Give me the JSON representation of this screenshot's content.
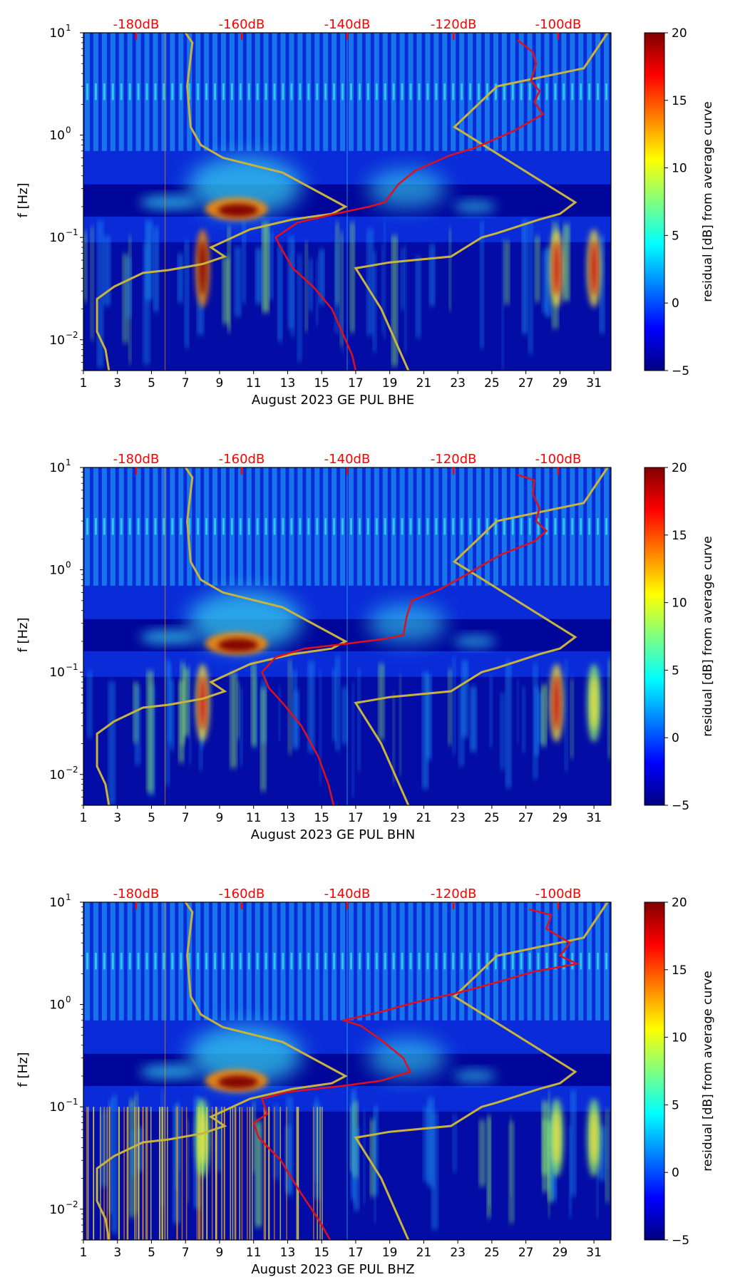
{
  "colorbar_ticks": [
    "20",
    "15",
    "10",
    "5",
    "0",
    "−5"
  ],
  "y_tick_labels": [
    {
      "base": "10",
      "exp": "1"
    },
    {
      "base": "10",
      "exp": "0"
    },
    {
      "base": "10",
      "exp": "−1"
    },
    {
      "base": "10",
      "exp": "−2"
    }
  ],
  "palette": {
    "cb_stops": [
      "#800000",
      "#ff0000",
      "#ff8000",
      "#ffff00",
      "#80ff80",
      "#00ffff",
      "#0080ff",
      "#0000ff",
      "#000080"
    ],
    "bg_deep": "#000090",
    "bg_mid": "#0a2cd8",
    "stripe": "#1c8cf0",
    "cyan": "#38d8f0",
    "green": "#8cf070",
    "yellow": "#f0e040",
    "orange": "#ff8c00",
    "red": "#d01010",
    "darkred": "#800000",
    "curve_red": "#e0101a",
    "curve_yellow": "#c8b43c",
    "db_label": "#ff0000"
  },
  "chart_data": [
    {
      "type": "heatmap",
      "xlabel": "August 2023 GE PUL  BHE",
      "ylabel": "f [Hz]",
      "colorbar_label": "residual [dB] from average curve",
      "colorbar_range": [
        -5,
        20
      ],
      "x_ticks": [
        "1",
        "3",
        "5",
        "7",
        "9",
        "11",
        "13",
        "15",
        "17",
        "19",
        "21",
        "23",
        "25",
        "27",
        "29",
        "31"
      ],
      "xlim": [
        1,
        32
      ],
      "ylim": [
        0.005,
        10
      ],
      "db_scale": [
        "-180dB",
        "-160dB",
        "-140dB",
        "-120dB",
        "-100dB"
      ],
      "db_scale_positions": [
        4.1,
        10.3,
        16.5,
        22.75,
        28.9
      ],
      "curve_yellow": [
        [
          7.0,
          10
        ],
        [
          7.4,
          8
        ],
        [
          7.1,
          3
        ],
        [
          7.3,
          1.2
        ],
        [
          7.9,
          0.8
        ],
        [
          9.2,
          0.6
        ],
        [
          12.7,
          0.43
        ],
        [
          16.4,
          0.2
        ],
        [
          15.6,
          0.17
        ],
        [
          13.3,
          0.15
        ],
        [
          10.8,
          0.12
        ],
        [
          8.5,
          0.08
        ],
        [
          9.3,
          0.065
        ],
        [
          8.0,
          0.055
        ],
        [
          6.0,
          0.048
        ],
        [
          4.5,
          0.045
        ],
        [
          2.8,
          0.033
        ],
        [
          1.8,
          0.025
        ],
        [
          1.8,
          0.012
        ],
        [
          2.3,
          0.008
        ],
        [
          2.5,
          0.005
        ]
      ],
      "curve_yellow_right": [
        [
          31.8,
          10
        ],
        [
          30.4,
          4.5
        ],
        [
          25.3,
          3.0
        ],
        [
          22.8,
          1.2
        ],
        [
          29.9,
          0.22
        ],
        [
          29.0,
          0.17
        ],
        [
          27.8,
          0.15
        ],
        [
          25.3,
          0.11
        ],
        [
          24.4,
          0.1
        ],
        [
          22.6,
          0.065
        ],
        [
          19.0,
          0.057
        ],
        [
          17.0,
          0.05
        ],
        [
          18.5,
          0.02
        ],
        [
          20.1,
          0.005
        ]
      ],
      "curve_red": [
        [
          26.5,
          8.5
        ],
        [
          27.4,
          6.5
        ],
        [
          27.6,
          5.0
        ],
        [
          27.3,
          3.4
        ],
        [
          27.8,
          2.7
        ],
        [
          27.5,
          2.1
        ],
        [
          28.0,
          1.6
        ],
        [
          27.4,
          1.4
        ],
        [
          26.3,
          1.1
        ],
        [
          24.0,
          0.75
        ],
        [
          22.5,
          0.63
        ],
        [
          20.5,
          0.45
        ],
        [
          19.5,
          0.33
        ],
        [
          18.7,
          0.22
        ],
        [
          17.8,
          0.2
        ],
        [
          15.8,
          0.17
        ],
        [
          13.6,
          0.14
        ],
        [
          12.3,
          0.1
        ],
        [
          12.5,
          0.085
        ],
        [
          13.3,
          0.05
        ],
        [
          14.5,
          0.033
        ],
        [
          15.6,
          0.02
        ],
        [
          16.4,
          0.01
        ],
        [
          16.8,
          0.007
        ],
        [
          17.0,
          0.005
        ]
      ],
      "hotspots": [
        {
          "x": 10.0,
          "f": 0.19,
          "level": "high"
        },
        {
          "x": 8.0,
          "f": 0.05,
          "level": "high"
        },
        {
          "x": 28.8,
          "f": 0.05,
          "level": "mid"
        },
        {
          "x": 31.0,
          "f": 0.05,
          "level": "mid"
        }
      ]
    },
    {
      "type": "heatmap",
      "xlabel": "August 2023 GE PUL  BHN",
      "ylabel": "f [Hz]",
      "colorbar_label": "residual [dB] from average curve",
      "colorbar_range": [
        -5,
        20
      ],
      "x_ticks": [
        "1",
        "3",
        "5",
        "7",
        "9",
        "11",
        "13",
        "15",
        "17",
        "19",
        "21",
        "23",
        "25",
        "27",
        "29",
        "31"
      ],
      "xlim": [
        1,
        32
      ],
      "ylim": [
        0.005,
        10
      ],
      "db_scale": [
        "-180dB",
        "-160dB",
        "-140dB",
        "-120dB",
        "-100dB"
      ],
      "db_scale_positions": [
        4.1,
        10.3,
        16.5,
        22.75,
        28.9
      ],
      "curve_yellow": [
        [
          7.0,
          10
        ],
        [
          7.4,
          8
        ],
        [
          7.1,
          3
        ],
        [
          7.3,
          1.2
        ],
        [
          7.9,
          0.8
        ],
        [
          9.2,
          0.6
        ],
        [
          12.7,
          0.43
        ],
        [
          16.4,
          0.2
        ],
        [
          15.6,
          0.17
        ],
        [
          13.3,
          0.15
        ],
        [
          10.8,
          0.12
        ],
        [
          8.5,
          0.08
        ],
        [
          9.3,
          0.065
        ],
        [
          8.0,
          0.055
        ],
        [
          6.0,
          0.048
        ],
        [
          4.5,
          0.045
        ],
        [
          2.8,
          0.033
        ],
        [
          1.8,
          0.025
        ],
        [
          1.8,
          0.012
        ],
        [
          2.3,
          0.008
        ],
        [
          2.5,
          0.005
        ]
      ],
      "curve_yellow_right": [
        [
          31.8,
          10
        ],
        [
          30.4,
          4.5
        ],
        [
          25.3,
          3.0
        ],
        [
          22.8,
          1.2
        ],
        [
          29.9,
          0.22
        ],
        [
          29.0,
          0.17
        ],
        [
          27.8,
          0.15
        ],
        [
          25.3,
          0.11
        ],
        [
          24.4,
          0.1
        ],
        [
          22.6,
          0.065
        ],
        [
          19.0,
          0.057
        ],
        [
          17.0,
          0.05
        ],
        [
          18.5,
          0.02
        ],
        [
          20.1,
          0.005
        ]
      ],
      "curve_red": [
        [
          26.5,
          8.5
        ],
        [
          27.5,
          7.5
        ],
        [
          27.4,
          5.5
        ],
        [
          27.8,
          4.0
        ],
        [
          27.6,
          3.0
        ],
        [
          28.2,
          2.4
        ],
        [
          27.5,
          1.9
        ],
        [
          25.5,
          1.4
        ],
        [
          23.5,
          0.9
        ],
        [
          22.0,
          0.65
        ],
        [
          20.3,
          0.5
        ],
        [
          20.0,
          0.35
        ],
        [
          19.8,
          0.23
        ],
        [
          18.6,
          0.21
        ],
        [
          16.5,
          0.19
        ],
        [
          14.0,
          0.17
        ],
        [
          12.3,
          0.14
        ],
        [
          11.5,
          0.1
        ],
        [
          11.9,
          0.07
        ],
        [
          12.7,
          0.05
        ],
        [
          13.8,
          0.03
        ],
        [
          14.8,
          0.015
        ],
        [
          15.4,
          0.008
        ],
        [
          15.7,
          0.005
        ]
      ],
      "hotspots": [
        {
          "x": 10.0,
          "f": 0.19,
          "level": "high"
        },
        {
          "x": 8.0,
          "f": 0.05,
          "level": "mid"
        },
        {
          "x": 28.8,
          "f": 0.05,
          "level": "mid"
        },
        {
          "x": 31.0,
          "f": 0.05,
          "level": "low"
        }
      ]
    },
    {
      "type": "heatmap",
      "xlabel": "August 2023 GE PUL  BHZ",
      "ylabel": "f [Hz]",
      "colorbar_label": "residual [dB] from average curve",
      "colorbar_range": [
        -5,
        20
      ],
      "x_ticks": [
        "1",
        "3",
        "5",
        "7",
        "9",
        "11",
        "13",
        "15",
        "17",
        "19",
        "21",
        "23",
        "25",
        "27",
        "29",
        "31"
      ],
      "xlim": [
        1,
        32
      ],
      "ylim": [
        0.005,
        10
      ],
      "db_scale": [
        "-180dB",
        "-160dB",
        "-140dB",
        "-120dB",
        "-100dB"
      ],
      "db_scale_positions": [
        4.1,
        10.3,
        16.5,
        22.75,
        28.9
      ],
      "curve_yellow": [
        [
          7.0,
          10
        ],
        [
          7.4,
          8
        ],
        [
          7.1,
          3
        ],
        [
          7.3,
          1.2
        ],
        [
          7.9,
          0.8
        ],
        [
          9.2,
          0.6
        ],
        [
          12.7,
          0.43
        ],
        [
          16.4,
          0.2
        ],
        [
          15.6,
          0.17
        ],
        [
          13.3,
          0.15
        ],
        [
          10.8,
          0.12
        ],
        [
          8.5,
          0.08
        ],
        [
          9.3,
          0.065
        ],
        [
          8.0,
          0.055
        ],
        [
          6.0,
          0.048
        ],
        [
          4.5,
          0.045
        ],
        [
          2.8,
          0.033
        ],
        [
          1.8,
          0.025
        ],
        [
          1.8,
          0.012
        ],
        [
          2.3,
          0.008
        ],
        [
          2.5,
          0.005
        ]
      ],
      "curve_yellow_right": [
        [
          31.8,
          10
        ],
        [
          30.4,
          4.5
        ],
        [
          25.3,
          3.0
        ],
        [
          22.8,
          1.2
        ],
        [
          29.9,
          0.22
        ],
        [
          29.0,
          0.17
        ],
        [
          27.8,
          0.15
        ],
        [
          25.3,
          0.11
        ],
        [
          24.4,
          0.1
        ],
        [
          22.6,
          0.065
        ],
        [
          19.0,
          0.057
        ],
        [
          17.0,
          0.05
        ],
        [
          18.5,
          0.02
        ],
        [
          20.1,
          0.005
        ]
      ],
      "curve_red": [
        [
          27.2,
          8.5
        ],
        [
          28.5,
          7.5
        ],
        [
          28.2,
          5.5
        ],
        [
          29.6,
          4.0
        ],
        [
          29.0,
          3.0
        ],
        [
          30.0,
          2.5
        ],
        [
          27.5,
          2.1
        ],
        [
          25.0,
          1.6
        ],
        [
          23.0,
          1.3
        ],
        [
          20.5,
          1.05
        ],
        [
          18.5,
          0.85
        ],
        [
          16.3,
          0.7
        ],
        [
          17.3,
          0.62
        ],
        [
          18.5,
          0.45
        ],
        [
          19.8,
          0.3
        ],
        [
          20.2,
          0.22
        ],
        [
          18.5,
          0.18
        ],
        [
          16.2,
          0.16
        ],
        [
          13.0,
          0.14
        ],
        [
          11.5,
          0.12
        ],
        [
          11.8,
          0.085
        ],
        [
          11.0,
          0.07
        ],
        [
          11.3,
          0.05
        ],
        [
          12.6,
          0.03
        ],
        [
          13.7,
          0.015
        ],
        [
          14.8,
          0.008
        ],
        [
          15.5,
          0.005
        ]
      ],
      "hotspots": [
        {
          "x": 10.0,
          "f": 0.18,
          "level": "high"
        },
        {
          "x": 8.0,
          "f": 0.05,
          "level": "low"
        },
        {
          "x": 28.8,
          "f": 0.05,
          "level": "low"
        },
        {
          "x": 31.0,
          "f": 0.05,
          "level": "low"
        }
      ]
    }
  ]
}
